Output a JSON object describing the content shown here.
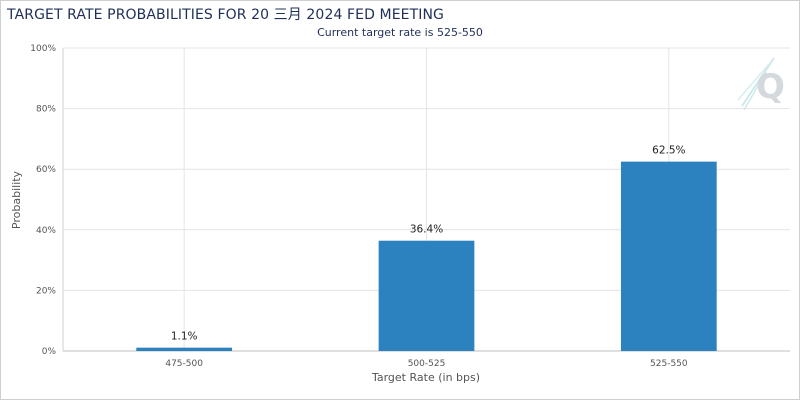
{
  "chart_data": {
    "type": "bar",
    "title": "TARGET RATE PROBABILITIES FOR 20 三月 2024 FED MEETING",
    "subtitle": "Current target rate is 525-550",
    "xlabel": "Target Rate (in bps)",
    "ylabel": "Probability",
    "categories": [
      "475-500",
      "500-525",
      "525-550"
    ],
    "values": [
      1.1,
      36.4,
      62.5
    ],
    "value_labels": [
      "1.1%",
      "36.4%",
      "62.5%"
    ],
    "yticks": [
      0,
      20,
      40,
      60,
      80,
      100
    ],
    "ytick_labels": [
      "0%",
      "20%",
      "40%",
      "60%",
      "80%",
      "100%"
    ],
    "ylim": [
      0,
      100
    ],
    "grid": true,
    "bar_color": "#2b82be",
    "watermark_icon": "q-logo-icon"
  }
}
